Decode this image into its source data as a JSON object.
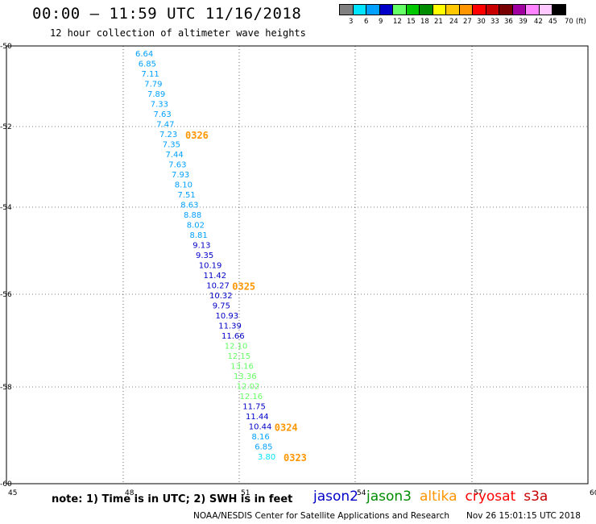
{
  "title": "00:00 – 11:59 UTC 11/16/2018",
  "subtitle": "12 hour collection of altimeter wave heights",
  "legend": {
    "colors": [
      "#808080",
      "#00e5ff",
      "#00a0ff",
      "#0000c8",
      "#64ff64",
      "#00c800",
      "#008c00",
      "#ffff00",
      "#ffc800",
      "#ff9600",
      "#ff0000",
      "#c80000",
      "#780000",
      "#a000a0",
      "#ff82ff",
      "#ffc8ff",
      "#000000"
    ],
    "labels": [
      "3",
      "6",
      "9",
      "12",
      "15",
      "18",
      "21",
      "24",
      "27",
      "30",
      "33",
      "36",
      "39",
      "42",
      "45",
      "70",
      "(ft)"
    ]
  },
  "axes": {
    "x_ticks": [
      "45",
      "48",
      "51",
      "54",
      "57",
      "60"
    ],
    "y_ticks": [
      "-50",
      "-52",
      "-54",
      "-56",
      "-58",
      "-60"
    ]
  },
  "wave_heights": [
    {
      "lon": 48.4,
      "lat": -50.15,
      "value": "6.64",
      "color": "#00a0ff"
    },
    {
      "lon": 48.5,
      "lat": -50.45,
      "value": "6.85",
      "color": "#00a0ff"
    },
    {
      "lon": 48.6,
      "lat": -50.75,
      "value": "7.11",
      "color": "#00a0ff"
    },
    {
      "lon": 48.7,
      "lat": -51.05,
      "value": "7.79",
      "color": "#00a0ff"
    },
    {
      "lon": 48.8,
      "lat": -51.35,
      "value": "7.89",
      "color": "#00a0ff"
    },
    {
      "lon": 48.9,
      "lat": -51.65,
      "value": "7.33",
      "color": "#00a0ff"
    },
    {
      "lon": 49.0,
      "lat": -51.95,
      "value": "7.63",
      "color": "#00a0ff"
    },
    {
      "lon": 49.1,
      "lat": -52.25,
      "value": "7.47",
      "color": "#00a0ff"
    },
    {
      "lon": 49.2,
      "lat": -52.55,
      "value": "7.23",
      "color": "#00a0ff"
    },
    {
      "lon": 49.3,
      "lat": -52.85,
      "value": "7.35",
      "color": "#00a0ff"
    },
    {
      "lon": 49.4,
      "lat": -53.15,
      "value": "7.44",
      "color": "#00a0ff"
    },
    {
      "lon": 49.5,
      "lat": -53.45,
      "value": "7.63",
      "color": "#00a0ff"
    },
    {
      "lon": 49.6,
      "lat": -53.75,
      "value": "7.93",
      "color": "#00a0ff"
    },
    {
      "lon": 49.7,
      "lat": -54.05,
      "value": "8.10",
      "color": "#00a0ff"
    },
    {
      "lon": 49.8,
      "lat": -54.35,
      "value": "7.51",
      "color": "#00a0ff"
    },
    {
      "lon": 49.9,
      "lat": -54.65,
      "value": "8.63",
      "color": "#00a0ff"
    },
    {
      "lon": 50.0,
      "lat": -54.95,
      "value": "8.88",
      "color": "#00a0ff"
    },
    {
      "lon": 50.1,
      "lat": -55.25,
      "value": "8.02",
      "color": "#00a0ff"
    },
    {
      "lon": 50.2,
      "lat": -55.55,
      "value": "8.81",
      "color": "#00a0ff"
    },
    {
      "lon": 50.3,
      "lat": -55.85,
      "value": "9.13",
      "color": "#0000c8"
    },
    {
      "lon": 50.4,
      "lat": -56.15,
      "value": "9.35",
      "color": "#0000c8"
    },
    {
      "lon": 50.5,
      "lat": -56.45,
      "value": "10.19",
      "color": "#0000c8"
    },
    {
      "lon": 50.6,
      "lat": -56.75,
      "value": "11.42",
      "color": "#0000c8"
    },
    {
      "lon": 50.7,
      "lat": -57.05,
      "value": "10.27",
      "color": "#0000c8"
    },
    {
      "lon": 50.8,
      "lat": -57.35,
      "value": "10.32",
      "color": "#0000c8"
    },
    {
      "lon": 50.9,
      "lat": -57.65,
      "value": "9.75",
      "color": "#0000c8"
    },
    {
      "lon": 51.0,
      "lat": -57.95,
      "value": "10.93",
      "color": "#0000c8"
    },
    {
      "lon": 51.1,
      "lat": -58.25,
      "value": "11.39",
      "color": "#0000c8"
    },
    {
      "lon": 51.2,
      "lat": -58.55,
      "value": "11.66",
      "color": "#0000c8"
    },
    {
      "lon": 51.3,
      "lat": -58.85,
      "value": "12.10",
      "color": "#64ff64"
    },
    {
      "lon": 51.4,
      "lat": -59.15,
      "value": "12.15",
      "color": "#64ff64"
    },
    {
      "lon": 51.5,
      "lat": -59.45,
      "value": "13.16",
      "color": "#64ff64"
    },
    {
      "lon": 51.6,
      "lat": -59.75,
      "value": "13.36",
      "color": "#64ff64"
    },
    {
      "lon": 51.7,
      "lat": -60.05,
      "value": "12.02",
      "color": "#64ff64"
    },
    {
      "lon": 51.8,
      "lat": -60.35,
      "value": "12.16",
      "color": "#64ff64"
    },
    {
      "lon": 51.9,
      "lat": -60.65,
      "value": "11.75",
      "color": "#0000c8"
    },
    {
      "lon": 52.0,
      "lat": -60.95,
      "value": "11.44",
      "color": "#0000c8"
    },
    {
      "lon": 52.1,
      "lat": -61.25,
      "value": "10.44",
      "color": "#0000c8"
    },
    {
      "lon": 52.2,
      "lat": -61.55,
      "value": "8.16",
      "color": "#00a0ff"
    },
    {
      "lon": 52.3,
      "lat": -61.85,
      "value": "6.85",
      "color": "#00a0ff"
    },
    {
      "lon": 52.4,
      "lat": -62.15,
      "value": "3.80",
      "color": "#00e5ff"
    }
  ],
  "time_labels": [
    {
      "after_value": "7.23",
      "text": "0326",
      "color": "#ff9600"
    },
    {
      "after_value": "10.27",
      "text": "0325",
      "color": "#ff9600"
    },
    {
      "after_value": "10.44",
      "text": "0324",
      "color": "#ff9600"
    },
    {
      "after_value": "3.80",
      "text": "0323",
      "color": "#ff9600"
    }
  ],
  "note": "note: 1) Time is in UTC; 2) SWH is in feet",
  "satellites": [
    {
      "name": "jason2",
      "color": "#0000c8"
    },
    {
      "name": "jason3",
      "color": "#008c00"
    },
    {
      "name": "altika",
      "color": "#ff9600"
    },
    {
      "name": "cryosat",
      "color": "#ff0000"
    },
    {
      "name": "s3a",
      "color": "#c80000"
    }
  ],
  "footer_left": "NOAA/NESDIS Center for Satellite Applications and Research",
  "footer_right": "Nov 26 15:01:15 UTC 2018"
}
